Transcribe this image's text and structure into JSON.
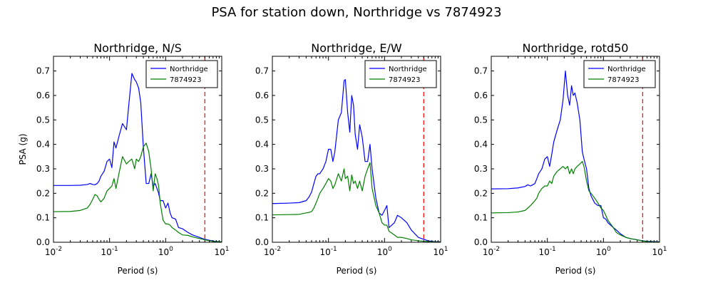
{
  "figure": {
    "suptitle": "PSA for station down, Northridge vs 7874923"
  },
  "chart_data": [
    {
      "type": "line",
      "title": "Northridge, N/S",
      "xlabel": "Period (s)",
      "ylabel": "PSA (g)",
      "xscale": "log",
      "xlim": [
        0.01,
        10
      ],
      "ylim": [
        0,
        0.76
      ],
      "x_ticks": [
        0.01,
        0.1,
        1,
        10
      ],
      "x_tick_labels": [
        [
          "10",
          "-2"
        ],
        [
          "10",
          "-1"
        ],
        [
          "10",
          "0"
        ],
        [
          "10",
          "1"
        ]
      ],
      "y_ticks": [
        0.0,
        0.1,
        0.2,
        0.3,
        0.4,
        0.5,
        0.6,
        0.7
      ],
      "y_tick_labels": [
        "0.0",
        "0.1",
        "0.2",
        "0.3",
        "0.4",
        "0.5",
        "0.6",
        "0.7"
      ],
      "legend_position": "top-right",
      "vline": {
        "x": 5,
        "color": "#ff0000",
        "style": "dashed"
      },
      "series": [
        {
          "name": "Northridge",
          "color": "#0000ff",
          "x": [
            0.01,
            0.02,
            0.03,
            0.04,
            0.045,
            0.05,
            0.055,
            0.06,
            0.065,
            0.07,
            0.08,
            0.09,
            0.1,
            0.11,
            0.12,
            0.13,
            0.15,
            0.17,
            0.2,
            0.22,
            0.25,
            0.28,
            0.3,
            0.33,
            0.36,
            0.4,
            0.45,
            0.5,
            0.55,
            0.6,
            0.65,
            0.7,
            0.75,
            0.8,
            0.9,
            1.0,
            1.1,
            1.2,
            1.3,
            1.5,
            1.7,
            2.0,
            2.5,
            3.0,
            4.0,
            5.0,
            6.0,
            7.5,
            10.0
          ],
          "y": [
            0.232,
            0.232,
            0.233,
            0.236,
            0.24,
            0.236,
            0.235,
            0.24,
            0.25,
            0.27,
            0.29,
            0.33,
            0.34,
            0.305,
            0.41,
            0.385,
            0.44,
            0.485,
            0.46,
            0.56,
            0.69,
            0.665,
            0.655,
            0.63,
            0.57,
            0.39,
            0.24,
            0.24,
            0.28,
            0.23,
            0.24,
            0.22,
            0.2,
            0.17,
            0.17,
            0.14,
            0.16,
            0.12,
            0.1,
            0.095,
            0.06,
            0.055,
            0.04,
            0.03,
            0.02,
            0.012,
            0.008,
            0.004,
            0.002
          ]
        },
        {
          "name": "7874923",
          "color": "#008000",
          "x": [
            0.01,
            0.02,
            0.03,
            0.04,
            0.045,
            0.05,
            0.055,
            0.06,
            0.065,
            0.07,
            0.08,
            0.09,
            0.1,
            0.11,
            0.12,
            0.13,
            0.15,
            0.17,
            0.2,
            0.22,
            0.25,
            0.28,
            0.3,
            0.33,
            0.36,
            0.4,
            0.45,
            0.5,
            0.55,
            0.6,
            0.65,
            0.7,
            0.75,
            0.8,
            0.9,
            1.0,
            1.1,
            1.2,
            1.3,
            1.5,
            1.7,
            2.0,
            2.5,
            3.0,
            4.0,
            5.0,
            6.0,
            7.5,
            10.0
          ],
          "y": [
            0.125,
            0.126,
            0.13,
            0.14,
            0.155,
            0.175,
            0.195,
            0.19,
            0.175,
            0.165,
            0.18,
            0.21,
            0.22,
            0.23,
            0.26,
            0.22,
            0.29,
            0.35,
            0.32,
            0.33,
            0.34,
            0.3,
            0.34,
            0.33,
            0.35,
            0.39,
            0.405,
            0.37,
            0.3,
            0.21,
            0.28,
            0.26,
            0.23,
            0.16,
            0.09,
            0.075,
            0.075,
            0.07,
            0.06,
            0.05,
            0.04,
            0.03,
            0.028,
            0.022,
            0.015,
            0.01,
            0.006,
            0.003,
            0.002
          ]
        }
      ]
    },
    {
      "type": "line",
      "title": "Northridge, E/W",
      "xlabel": "Period (s)",
      "ylabel": "",
      "xscale": "log",
      "xlim": [
        0.01,
        10
      ],
      "ylim": [
        0,
        0.76
      ],
      "x_ticks": [
        0.01,
        0.1,
        1,
        10
      ],
      "x_tick_labels": [
        [
          "10",
          "-2"
        ],
        [
          "10",
          "-1"
        ],
        [
          "10",
          "0"
        ],
        [
          "10",
          "1"
        ]
      ],
      "y_ticks": [
        0.0,
        0.1,
        0.2,
        0.3,
        0.4,
        0.5,
        0.6,
        0.7
      ],
      "y_tick_labels": [
        "0.0",
        "0.1",
        "0.2",
        "0.3",
        "0.4",
        "0.5",
        "0.6",
        "0.7"
      ],
      "legend_position": "top-right",
      "vline": {
        "x": 5,
        "color": "#ff0000",
        "style": "dashed"
      },
      "series": [
        {
          "name": "Northridge",
          "color": "#0000ff",
          "x": [
            0.01,
            0.02,
            0.03,
            0.04,
            0.045,
            0.05,
            0.055,
            0.06,
            0.065,
            0.07,
            0.08,
            0.09,
            0.1,
            0.11,
            0.12,
            0.13,
            0.15,
            0.17,
            0.19,
            0.2,
            0.22,
            0.24,
            0.26,
            0.28,
            0.3,
            0.33,
            0.36,
            0.4,
            0.45,
            0.5,
            0.55,
            0.6,
            0.7,
            0.8,
            0.9,
            1.0,
            1.1,
            1.2,
            1.5,
            1.7,
            2.0,
            2.5,
            3.0,
            4.0,
            5.0,
            6.0,
            7.5,
            10.0
          ],
          "y": [
            0.158,
            0.16,
            0.162,
            0.17,
            0.185,
            0.205,
            0.24,
            0.27,
            0.28,
            0.28,
            0.3,
            0.33,
            0.38,
            0.38,
            0.33,
            0.37,
            0.5,
            0.53,
            0.66,
            0.665,
            0.53,
            0.45,
            0.6,
            0.56,
            0.44,
            0.38,
            0.48,
            0.43,
            0.33,
            0.33,
            0.4,
            0.3,
            0.18,
            0.12,
            0.11,
            0.13,
            0.15,
            0.06,
            0.08,
            0.11,
            0.1,
            0.08,
            0.05,
            0.02,
            0.012,
            0.006,
            0.003,
            0.002
          ]
        },
        {
          "name": "7874923",
          "color": "#008000",
          "x": [
            0.01,
            0.02,
            0.03,
            0.04,
            0.045,
            0.05,
            0.055,
            0.06,
            0.065,
            0.07,
            0.08,
            0.09,
            0.1,
            0.11,
            0.12,
            0.13,
            0.15,
            0.17,
            0.19,
            0.2,
            0.22,
            0.24,
            0.26,
            0.28,
            0.3,
            0.33,
            0.36,
            0.4,
            0.45,
            0.5,
            0.55,
            0.6,
            0.7,
            0.8,
            0.9,
            1.0,
            1.1,
            1.2,
            1.5,
            1.7,
            2.0,
            2.5,
            3.0,
            4.0,
            5.0,
            6.0,
            7.5,
            10.0
          ],
          "y": [
            0.112,
            0.113,
            0.114,
            0.12,
            0.122,
            0.125,
            0.14,
            0.16,
            0.18,
            0.2,
            0.22,
            0.24,
            0.26,
            0.25,
            0.22,
            0.235,
            0.28,
            0.25,
            0.3,
            0.26,
            0.27,
            0.21,
            0.275,
            0.24,
            0.25,
            0.22,
            0.25,
            0.21,
            0.27,
            0.3,
            0.325,
            0.22,
            0.15,
            0.12,
            0.08,
            0.07,
            0.07,
            0.045,
            0.03,
            0.02,
            0.02,
            0.015,
            0.01,
            0.006,
            0.004,
            0.003,
            0.002,
            0.001
          ]
        }
      ]
    },
    {
      "type": "line",
      "title": "Northridge, rotd50",
      "xlabel": "Period (s)",
      "ylabel": "",
      "xscale": "log",
      "xlim": [
        0.01,
        10
      ],
      "ylim": [
        0,
        0.76
      ],
      "x_ticks": [
        0.01,
        0.1,
        1,
        10
      ],
      "x_tick_labels": [
        [
          "10",
          "-2"
        ],
        [
          "10",
          "-1"
        ],
        [
          "10",
          "0"
        ],
        [
          "10",
          "1"
        ]
      ],
      "y_ticks": [
        0.0,
        0.1,
        0.2,
        0.3,
        0.4,
        0.5,
        0.6,
        0.7
      ],
      "y_tick_labels": [
        "0.0",
        "0.1",
        "0.2",
        "0.3",
        "0.4",
        "0.5",
        "0.6",
        "0.7"
      ],
      "legend_position": "top-right",
      "vline": {
        "x": 5,
        "color": "#ff0000",
        "style": "dashed"
      },
      "series": [
        {
          "name": "Northridge",
          "color": "#0000ff",
          "x": [
            0.01,
            0.02,
            0.03,
            0.04,
            0.045,
            0.05,
            0.055,
            0.06,
            0.065,
            0.07,
            0.08,
            0.09,
            0.1,
            0.11,
            0.12,
            0.13,
            0.15,
            0.17,
            0.19,
            0.21,
            0.23,
            0.25,
            0.27,
            0.29,
            0.31,
            0.34,
            0.38,
            0.42,
            0.45,
            0.5,
            0.55,
            0.6,
            0.7,
            0.8,
            0.9,
            1.0,
            1.1,
            1.2,
            1.5,
            1.7,
            2.0,
            2.5,
            3.0,
            4.0,
            5.0,
            6.0,
            7.5,
            10.0
          ],
          "y": [
            0.218,
            0.219,
            0.222,
            0.228,
            0.235,
            0.23,
            0.235,
            0.24,
            0.26,
            0.28,
            0.3,
            0.34,
            0.35,
            0.31,
            0.36,
            0.41,
            0.46,
            0.5,
            0.58,
            0.7,
            0.6,
            0.56,
            0.64,
            0.6,
            0.61,
            0.57,
            0.5,
            0.37,
            0.34,
            0.3,
            0.22,
            0.19,
            0.16,
            0.15,
            0.15,
            0.1,
            0.095,
            0.08,
            0.06,
            0.05,
            0.035,
            0.02,
            0.015,
            0.01,
            0.006,
            0.004,
            0.003,
            0.002
          ]
        },
        {
          "name": "7874923",
          "color": "#008000",
          "x": [
            0.01,
            0.02,
            0.03,
            0.04,
            0.045,
            0.05,
            0.055,
            0.06,
            0.065,
            0.07,
            0.08,
            0.09,
            0.1,
            0.11,
            0.12,
            0.13,
            0.15,
            0.17,
            0.19,
            0.21,
            0.23,
            0.25,
            0.27,
            0.29,
            0.31,
            0.34,
            0.38,
            0.42,
            0.45,
            0.5,
            0.55,
            0.6,
            0.7,
            0.8,
            0.9,
            1.0,
            1.1,
            1.2,
            1.5,
            1.7,
            2.0,
            2.5,
            3.0,
            4.0,
            5.0,
            6.0,
            7.5,
            10.0
          ],
          "y": [
            0.12,
            0.121,
            0.124,
            0.13,
            0.14,
            0.15,
            0.16,
            0.17,
            0.18,
            0.2,
            0.22,
            0.23,
            0.23,
            0.25,
            0.24,
            0.27,
            0.29,
            0.3,
            0.31,
            0.3,
            0.31,
            0.28,
            0.3,
            0.28,
            0.3,
            0.31,
            0.32,
            0.33,
            0.31,
            0.25,
            0.21,
            0.2,
            0.18,
            0.16,
            0.14,
            0.13,
            0.11,
            0.09,
            0.06,
            0.04,
            0.03,
            0.02,
            0.015,
            0.01,
            0.005,
            0.003,
            0.002,
            0.001
          ]
        }
      ]
    }
  ]
}
